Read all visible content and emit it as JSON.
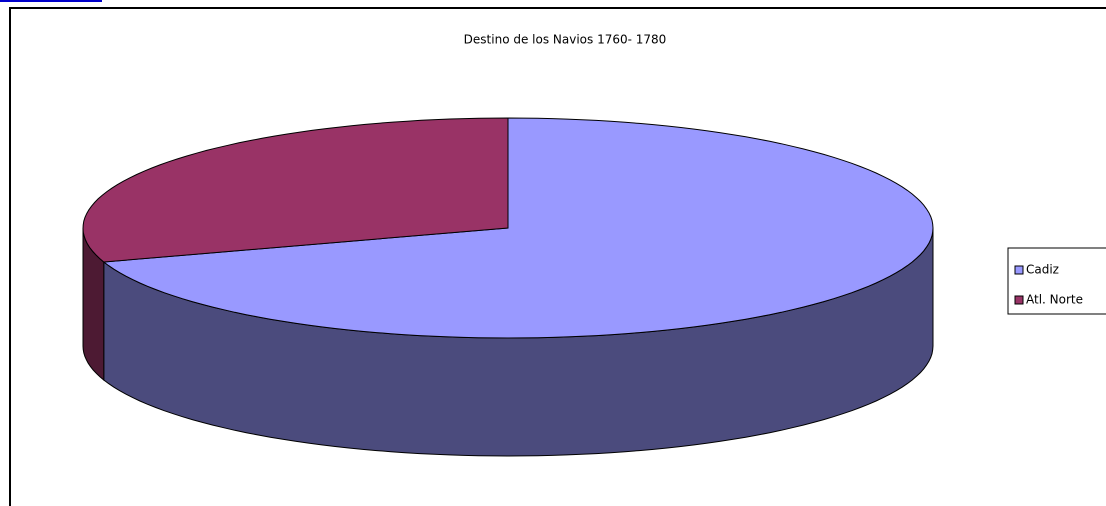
{
  "chart_data": {
    "type": "pie",
    "title": "Destino de los Navios 1760- 1780",
    "categories": [
      "Cadiz",
      "Atl. Norte"
    ],
    "values": [
      70,
      30
    ],
    "colors": [
      "#9999ff",
      "#993366"
    ],
    "side_colors": [
      "#4b4b7d",
      "#4d1a33"
    ],
    "legend": "right"
  }
}
